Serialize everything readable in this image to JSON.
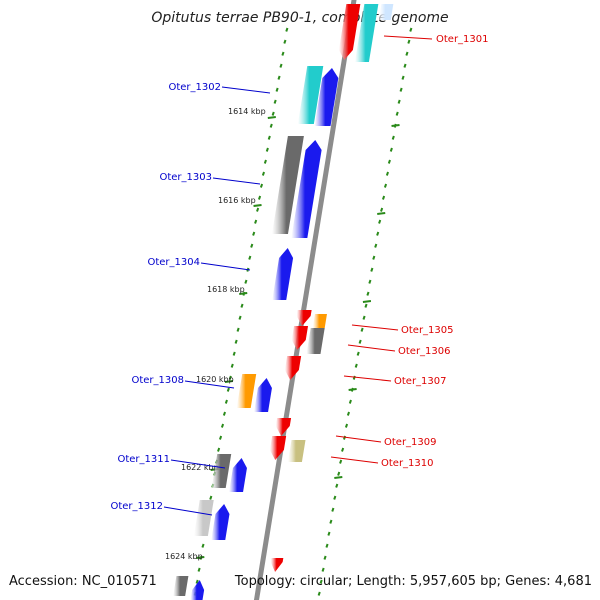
{
  "title": "Opitutus terrae PB90-1, complete genome",
  "accession": "Accession: NC_010571",
  "summary": "Topology: circular; Length: 5,957,605 bp; Genes: 4,681",
  "colors": {
    "backbone": "#8c8c8c",
    "ticks": "#2a8a1a",
    "label_left": "#0000cc",
    "label_right": "#dd0000",
    "blue": "#1a1aee",
    "cyan": "#22cccc",
    "gray": "#6a6a6a",
    "orange": "#ff9a00",
    "red": "#ee0000",
    "khaki": "#c8c080",
    "lightgray": "#c8c8c8",
    "paleblue": "#cfe6ff"
  },
  "kbp_labels": [
    "1614 kbp",
    "1616 kbp",
    "1618 kbp",
    "1620 kbp",
    "1622 kbp",
    "1624 kbp"
  ],
  "genes_left": [
    {
      "name": "Oter_1302"
    },
    {
      "name": "Oter_1303"
    },
    {
      "name": "Oter_1304"
    },
    {
      "name": "Oter_1308"
    },
    {
      "name": "Oter_1311"
    },
    {
      "name": "Oter_1312"
    }
  ],
  "genes_right": [
    {
      "name": "Oter_1301"
    },
    {
      "name": "Oter_1305"
    },
    {
      "name": "Oter_1306"
    },
    {
      "name": "Oter_1307"
    },
    {
      "name": "Oter_1309"
    },
    {
      "name": "Oter_1310"
    }
  ]
}
